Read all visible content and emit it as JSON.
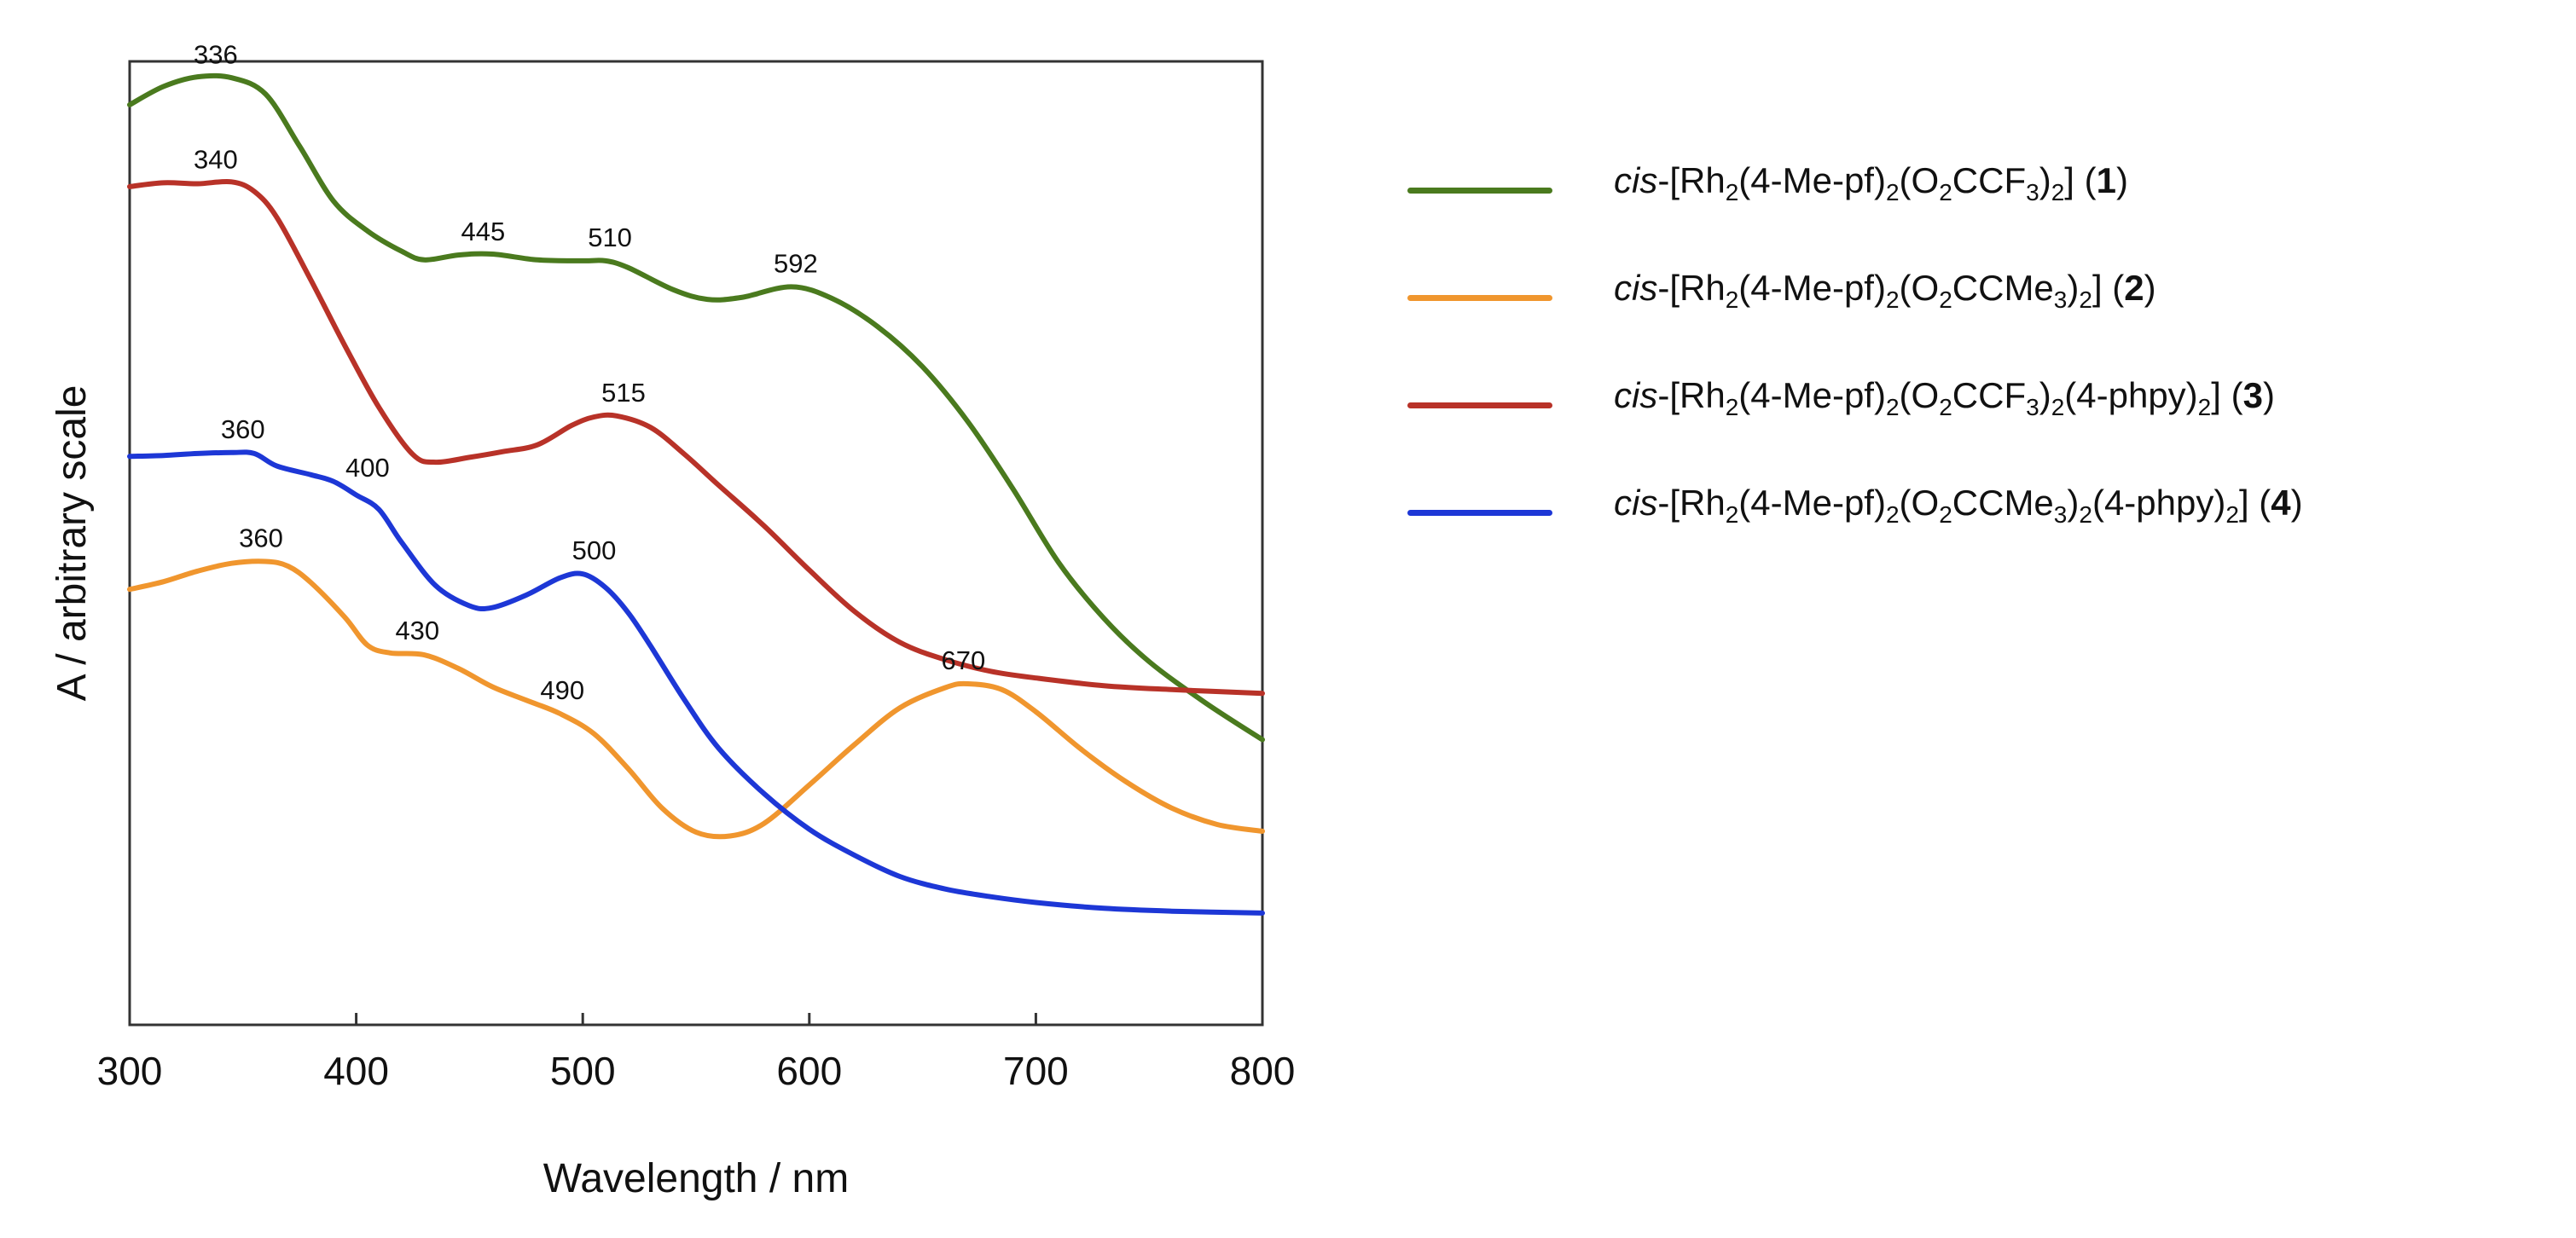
{
  "chart_data": {
    "type": "line",
    "xlabel": "Wavelength / nm",
    "ylabel": "A / arbitrary scale",
    "xlim": [
      300,
      800
    ],
    "ylim": [
      0,
      100
    ],
    "xticks": [
      "300",
      "400",
      "500",
      "600",
      "700",
      "800"
    ],
    "y_ticks_shown": false,
    "grid": false,
    "legend_position": "right",
    "series": [
      {
        "id": "s1",
        "color": "#4a7a1e",
        "legend_prefix": "cis",
        "legend_rest": "-[Rh₂(4-Me-pf)₂(O₂CCF₃)₂]",
        "legend_number": "1",
        "x": [
          300,
          315,
          330,
          345,
          360,
          375,
          390,
          405,
          420,
          430,
          445,
          460,
          480,
          500,
          510,
          520,
          540,
          555,
          570,
          592,
          610,
          630,
          650,
          670,
          690,
          710,
          730,
          750,
          775,
          800
        ],
        "y": [
          95.5,
          97.4,
          98.4,
          98.3,
          96.6,
          91.2,
          85.5,
          82.4,
          80.3,
          79.4,
          79.9,
          80.0,
          79.4,
          79.3,
          79.3,
          78.6,
          76.3,
          75.3,
          75.5,
          76.6,
          75.4,
          72.5,
          68.3,
          62.6,
          55.6,
          48.0,
          42.2,
          37.7,
          33.4,
          29.6
        ]
      },
      {
        "id": "s2",
        "color": "#f0962e",
        "legend_prefix": "cis",
        "legend_rest": "-[Rh₂(4-Me-pf)₂(O₂CCMe₃)₂]",
        "legend_number": "2",
        "x": [
          300,
          315,
          330,
          345,
          360,
          370,
          380,
          395,
          405,
          415,
          430,
          445,
          460,
          475,
          490,
          505,
          520,
          535,
          550,
          565,
          580,
          600,
          620,
          640,
          660,
          670,
          685,
          700,
          720,
          740,
          760,
          780,
          800
        ],
        "y": [
          45.2,
          46.0,
          47.1,
          47.9,
          48.1,
          47.6,
          45.9,
          42.3,
          39.4,
          38.6,
          38.4,
          37.0,
          35.1,
          33.7,
          32.3,
          30.2,
          26.6,
          22.5,
          20.0,
          19.6,
          20.9,
          24.9,
          29.1,
          32.9,
          35.0,
          35.4,
          34.8,
          32.5,
          28.6,
          25.2,
          22.5,
          20.8,
          20.1
        ]
      },
      {
        "id": "s3",
        "color": "#b83228",
        "legend_prefix": "cis",
        "legend_rest": "-[Rh₂(4-Me-pf)₂(O₂CCF₃)₂(4-phpy)₂]",
        "legend_number": "3",
        "x": [
          300,
          315,
          330,
          345,
          355,
          365,
          380,
          395,
          410,
          425,
          435,
          450,
          465,
          480,
          495,
          505,
          515,
          530,
          545,
          560,
          580,
          600,
          620,
          640,
          660,
          680,
          700,
          730,
          760,
          800
        ],
        "y": [
          87.0,
          87.4,
          87.3,
          87.5,
          86.5,
          83.8,
          77.3,
          70.5,
          64.1,
          59.2,
          58.4,
          58.9,
          59.5,
          60.2,
          62.2,
          63.1,
          63.2,
          62.0,
          59.2,
          56.0,
          51.8,
          47.2,
          42.9,
          39.7,
          37.9,
          36.7,
          36.0,
          35.2,
          34.8,
          34.4
        ]
      },
      {
        "id": "s4",
        "color": "#1d37d6",
        "legend_prefix": "cis",
        "legend_rest": "-[Rh₂(4-Me-pf)₂(O₂CCMe₃)₂(4-phpy)₂]",
        "legend_number": "4",
        "x": [
          300,
          315,
          330,
          345,
          355,
          365,
          380,
          390,
          400,
          410,
          420,
          435,
          450,
          460,
          475,
          490,
          500,
          510,
          520,
          530,
          545,
          560,
          580,
          600,
          620,
          640,
          660,
          680,
          700,
          730,
          760,
          800
        ],
        "y": [
          59.0,
          59.1,
          59.3,
          59.4,
          59.3,
          58.0,
          57.1,
          56.4,
          55.0,
          53.5,
          50.1,
          45.6,
          43.5,
          43.3,
          44.6,
          46.4,
          46.8,
          45.4,
          42.8,
          39.3,
          33.7,
          28.7,
          24.0,
          20.3,
          17.6,
          15.4,
          14.1,
          13.3,
          12.7,
          12.1,
          11.8,
          11.6
        ]
      }
    ],
    "annotations": [
      {
        "text": "336",
        "x": 338,
        "y": 99.8
      },
      {
        "text": "340",
        "x": 338,
        "y": 88.9
      },
      {
        "text": "445",
        "x": 456,
        "y": 81.4
      },
      {
        "text": "510",
        "x": 512,
        "y": 80.8
      },
      {
        "text": "592",
        "x": 594,
        "y": 78.1
      },
      {
        "text": "515",
        "x": 518,
        "y": 64.7
      },
      {
        "text": "360",
        "x": 350,
        "y": 60.9
      },
      {
        "text": "400",
        "x": 405,
        "y": 56.9
      },
      {
        "text": "360",
        "x": 358,
        "y": 49.6
      },
      {
        "text": "500",
        "x": 505,
        "y": 48.3
      },
      {
        "text": "430",
        "x": 427,
        "y": 40.0
      },
      {
        "text": "490",
        "x": 491,
        "y": 33.8
      },
      {
        "text": "670",
        "x": 668,
        "y": 36.9
      }
    ]
  }
}
